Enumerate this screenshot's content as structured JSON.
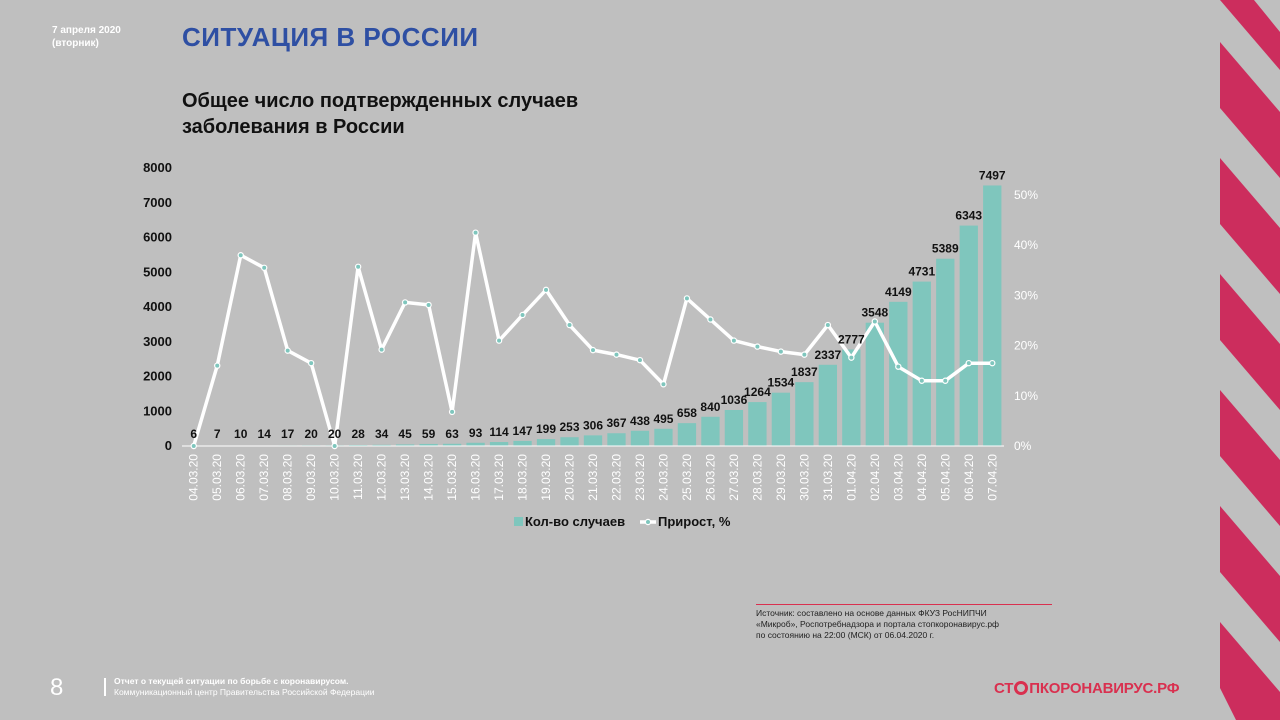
{
  "header": {
    "date": "7 апреля 2020",
    "weekday": "(вторник)",
    "section_title": "СИТУАЦИЯ В РОССИИ"
  },
  "chart_title_line1": "Общее число подтвержденных случаев",
  "chart_title_line2": "заболевания в России",
  "colors": {
    "bars": "#7fc6bd",
    "line": "#ffffff",
    "accent": "#d9304f",
    "title": "#2e4fa3",
    "stripes": "#cc2d5d"
  },
  "chart_data": {
    "type": "bar",
    "categories": [
      "04.03.20",
      "05.03.20",
      "06.03.20",
      "07.03.20",
      "08.03.20",
      "09.03.20",
      "10.03.20",
      "11.03.20",
      "12.03.20",
      "13.03.20",
      "14.03.20",
      "15.03.20",
      "16.03.20",
      "17.03.20",
      "18.03.20",
      "19.03.20",
      "20.03.20",
      "21.03.20",
      "22.03.20",
      "23.03.20",
      "24.03.20",
      "25.03.20",
      "26.03.20",
      "27.03.20",
      "28.03.20",
      "29.03.20",
      "30.03.20",
      "31.03.20",
      "01.04.20",
      "02.04.20",
      "03.04.20",
      "04.04.20",
      "05.04.20",
      "06.04.20",
      "07.04.20"
    ],
    "series": [
      {
        "name": "Кол-во случаев",
        "type": "bar",
        "axis": "left",
        "values": [
          6,
          7,
          10,
          14,
          17,
          20,
          20,
          28,
          34,
          45,
          59,
          63,
          93,
          114,
          147,
          199,
          253,
          306,
          367,
          438,
          495,
          658,
          840,
          1036,
          1264,
          1534,
          1837,
          2337,
          2777,
          3548,
          4149,
          4731,
          5389,
          6343,
          7497
        ]
      },
      {
        "name": "Прирост, %",
        "type": "line",
        "axis": "right",
        "values": [
          0,
          16.0,
          38.0,
          35.5,
          19.0,
          16.5,
          0,
          35.7,
          19.2,
          28.6,
          28.1,
          6.8,
          42.5,
          21.0,
          26.1,
          31.1,
          24.1,
          19.1,
          18.2,
          17.1,
          12.3,
          29.4,
          25.2,
          21.0,
          19.8,
          18.8,
          18.2,
          24.1,
          17.6,
          24.8,
          15.8,
          13.0,
          13.0,
          16.5,
          16.5
        ]
      }
    ],
    "y_left": {
      "min": 0,
      "max": 8000,
      "ticks": [
        "0",
        "1000",
        "2000",
        "3000",
        "4000",
        "5000",
        "6000",
        "7000",
        "8000"
      ]
    },
    "y_right": {
      "min": 0,
      "max": 50,
      "ticks": [
        "0%",
        "10%",
        "20%",
        "30%",
        "40%",
        "50%"
      ]
    },
    "grid": false,
    "legend_position": "bottom"
  },
  "source": {
    "line1": "Источник: составлено на основе данных ФКУЗ РосНИПЧИ",
    "line2": "«Микроб», Роспотребнадзора и портала стопкоронавирус.рф",
    "line3": "по состоянию на 22:00 (МСК) от 06.04.2020 г."
  },
  "footer": {
    "page_number": "8",
    "line1": "Отчет о текущей ситуации по борьбе с коронавирусом.",
    "line2": "Коммуникационный центр Правительства Российской Федерации",
    "brand_pre": "СТ",
    "brand_post": "ПКОРОНАВИРУС.РФ"
  }
}
